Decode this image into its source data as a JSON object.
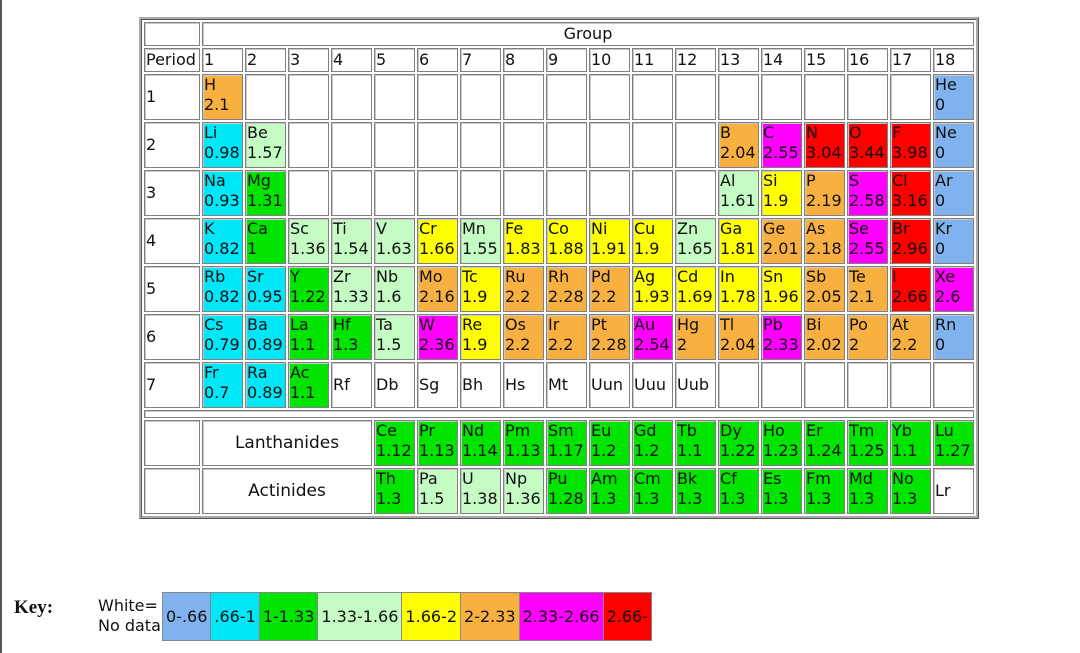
{
  "table": {
    "group_header": "Group",
    "period_header": "Period",
    "group_numbers": [
      "1",
      "2",
      "3",
      "4",
      "5",
      "6",
      "7",
      "8",
      "9",
      "10",
      "11",
      "12",
      "13",
      "14",
      "15",
      "16",
      "17",
      "18"
    ],
    "rows": [
      {
        "period": "1",
        "cells": [
          {
            "sym": "H",
            "en": "2.1",
            "c": "orange"
          },
          {},
          {},
          {},
          {},
          {},
          {},
          {},
          {},
          {},
          {},
          {},
          {},
          {},
          {},
          {},
          {},
          {
            "sym": "He",
            "en": "0",
            "c": "blue"
          }
        ]
      },
      {
        "period": "2",
        "cells": [
          {
            "sym": "Li",
            "en": "0.98",
            "c": "cyan"
          },
          {
            "sym": "Be",
            "en": "1.57",
            "c": "ltgreen"
          },
          {},
          {},
          {},
          {},
          {},
          {},
          {},
          {},
          {},
          {},
          {
            "sym": "B",
            "en": "2.04",
            "c": "orange"
          },
          {
            "sym": "C",
            "en": "2.55",
            "c": "magenta"
          },
          {
            "sym": "N",
            "en": "3.04",
            "c": "red"
          },
          {
            "sym": "O",
            "en": "3.44",
            "c": "red"
          },
          {
            "sym": "F",
            "en": "3.98",
            "c": "red"
          },
          {
            "sym": "Ne",
            "en": "0",
            "c": "blue"
          }
        ]
      },
      {
        "period": "3",
        "cells": [
          {
            "sym": "Na",
            "en": "0.93",
            "c": "cyan"
          },
          {
            "sym": "Mg",
            "en": "1.31",
            "c": "green"
          },
          {},
          {},
          {},
          {},
          {},
          {},
          {},
          {},
          {},
          {},
          {
            "sym": "Al",
            "en": "1.61",
            "c": "ltgreen"
          },
          {
            "sym": "Si",
            "en": "1.9",
            "c": "yellow"
          },
          {
            "sym": "P",
            "en": "2.19",
            "c": "orange"
          },
          {
            "sym": "S",
            "en": "2.58",
            "c": "magenta"
          },
          {
            "sym": "Cl",
            "en": "3.16",
            "c": "red"
          },
          {
            "sym": "Ar",
            "en": "0",
            "c": "blue"
          }
        ]
      },
      {
        "period": "4",
        "cells": [
          {
            "sym": "K",
            "en": "0.82",
            "c": "cyan"
          },
          {
            "sym": "Ca",
            "en": "1",
            "c": "green"
          },
          {
            "sym": "Sc",
            "en": "1.36",
            "c": "ltgreen"
          },
          {
            "sym": "Ti",
            "en": "1.54",
            "c": "ltgreen"
          },
          {
            "sym": "V",
            "en": "1.63",
            "c": "ltgreen"
          },
          {
            "sym": "Cr",
            "en": "1.66",
            "c": "yellow"
          },
          {
            "sym": "Mn",
            "en": "1.55",
            "c": "ltgreen"
          },
          {
            "sym": "Fe",
            "en": "1.83",
            "c": "yellow"
          },
          {
            "sym": "Co",
            "en": "1.88",
            "c": "yellow"
          },
          {
            "sym": "Ni",
            "en": "1.91",
            "c": "yellow"
          },
          {
            "sym": "Cu",
            "en": "1.9",
            "c": "yellow"
          },
          {
            "sym": "Zn",
            "en": "1.65",
            "c": "ltgreen"
          },
          {
            "sym": "Ga",
            "en": "1.81",
            "c": "yellow"
          },
          {
            "sym": "Ge",
            "en": "2.01",
            "c": "orange"
          },
          {
            "sym": "As",
            "en": "2.18",
            "c": "orange"
          },
          {
            "sym": "Se",
            "en": "2.55",
            "c": "magenta"
          },
          {
            "sym": "Br",
            "en": "2.96",
            "c": "red"
          },
          {
            "sym": "Kr",
            "en": "0",
            "c": "blue"
          }
        ]
      },
      {
        "period": "5",
        "cells": [
          {
            "sym": "Rb",
            "en": "0.82",
            "c": "cyan"
          },
          {
            "sym": "Sr",
            "en": "0.95",
            "c": "cyan"
          },
          {
            "sym": "Y",
            "en": "1.22",
            "c": "green"
          },
          {
            "sym": "Zr",
            "en": "1.33",
            "c": "ltgreen"
          },
          {
            "sym": "Nb",
            "en": "1.6",
            "c": "ltgreen"
          },
          {
            "sym": "Mo",
            "en": "2.16",
            "c": "orange"
          },
          {
            "sym": "Tc",
            "en": "1.9",
            "c": "yellow"
          },
          {
            "sym": "Ru",
            "en": "2.2",
            "c": "orange"
          },
          {
            "sym": "Rh",
            "en": "2.28",
            "c": "orange"
          },
          {
            "sym": "Pd",
            "en": "2.2",
            "c": "orange"
          },
          {
            "sym": "Ag",
            "en": "1.93",
            "c": "yellow"
          },
          {
            "sym": "Cd",
            "en": "1.69",
            "c": "yellow"
          },
          {
            "sym": "In",
            "en": "1.78",
            "c": "yellow"
          },
          {
            "sym": "Sn",
            "en": "1.96",
            "c": "yellow"
          },
          {
            "sym": "Sb",
            "en": "2.05",
            "c": "orange"
          },
          {
            "sym": "Te",
            "en": "2.1",
            "c": "orange"
          },
          {
            "sym": "I",
            "en": "2.66",
            "c": "red"
          },
          {
            "sym": "Xe",
            "en": "2.6",
            "c": "magenta"
          }
        ]
      },
      {
        "period": "6",
        "cells": [
          {
            "sym": "Cs",
            "en": "0.79",
            "c": "cyan"
          },
          {
            "sym": "Ba",
            "en": "0.89",
            "c": "cyan"
          },
          {
            "sym": "La",
            "en": "1.1",
            "c": "green"
          },
          {
            "sym": "Hf",
            "en": "1.3",
            "c": "green"
          },
          {
            "sym": "Ta",
            "en": "1.5",
            "c": "ltgreen"
          },
          {
            "sym": "W",
            "en": "2.36",
            "c": "magenta"
          },
          {
            "sym": "Re",
            "en": "1.9",
            "c": "yellow"
          },
          {
            "sym": "Os",
            "en": "2.2",
            "c": "orange"
          },
          {
            "sym": "Ir",
            "en": "2.2",
            "c": "orange"
          },
          {
            "sym": "Pt",
            "en": "2.28",
            "c": "orange"
          },
          {
            "sym": "Au",
            "en": "2.54",
            "c": "magenta"
          },
          {
            "sym": "Hg",
            "en": "2",
            "c": "orange"
          },
          {
            "sym": "Tl",
            "en": "2.04",
            "c": "orange"
          },
          {
            "sym": "Pb",
            "en": "2.33",
            "c": "magenta"
          },
          {
            "sym": "Bi",
            "en": "2.02",
            "c": "orange"
          },
          {
            "sym": "Po",
            "en": "2",
            "c": "orange"
          },
          {
            "sym": "At",
            "en": "2.2",
            "c": "orange"
          },
          {
            "sym": "Rn",
            "en": "0",
            "c": "blue"
          }
        ]
      },
      {
        "period": "7",
        "cells": [
          {
            "sym": "Fr",
            "en": "0.7",
            "c": "cyan"
          },
          {
            "sym": "Ra",
            "en": "0.89",
            "c": "cyan"
          },
          {
            "sym": "Ac",
            "en": "1.1",
            "c": "green"
          },
          {
            "sym": "Rf"
          },
          {
            "sym": "Db"
          },
          {
            "sym": "Sg"
          },
          {
            "sym": "Bh"
          },
          {
            "sym": "Hs"
          },
          {
            "sym": "Mt"
          },
          {
            "sym": "Uun"
          },
          {
            "sym": "Uuu"
          },
          {
            "sym": "Uub"
          },
          {},
          {},
          {},
          {},
          {},
          {}
        ]
      }
    ],
    "series": [
      {
        "label": "Lanthanides",
        "cells": [
          {
            "sym": "Ce",
            "en": "1.12",
            "c": "green"
          },
          {
            "sym": "Pr",
            "en": "1.13",
            "c": "green"
          },
          {
            "sym": "Nd",
            "en": "1.14",
            "c": "green"
          },
          {
            "sym": "Pm",
            "en": "1.13",
            "c": "green"
          },
          {
            "sym": "Sm",
            "en": "1.17",
            "c": "green"
          },
          {
            "sym": "Eu",
            "en": "1.2",
            "c": "green"
          },
          {
            "sym": "Gd",
            "en": "1.2",
            "c": "green"
          },
          {
            "sym": "Tb",
            "en": "1.1",
            "c": "green"
          },
          {
            "sym": "Dy",
            "en": "1.22",
            "c": "green"
          },
          {
            "sym": "Ho",
            "en": "1.23",
            "c": "green"
          },
          {
            "sym": "Er",
            "en": "1.24",
            "c": "green"
          },
          {
            "sym": "Tm",
            "en": "1.25",
            "c": "green"
          },
          {
            "sym": "Yb",
            "en": "1.1",
            "c": "green"
          },
          {
            "sym": "Lu",
            "en": "1.27",
            "c": "green"
          }
        ]
      },
      {
        "label": "Actinides",
        "cells": [
          {
            "sym": "Th",
            "en": "1.3",
            "c": "green"
          },
          {
            "sym": "Pa",
            "en": "1.5",
            "c": "ltgreen"
          },
          {
            "sym": "U",
            "en": "1.38",
            "c": "ltgreen"
          },
          {
            "sym": "Np",
            "en": "1.36",
            "c": "ltgreen"
          },
          {
            "sym": "Pu",
            "en": "1.28",
            "c": "green"
          },
          {
            "sym": "Am",
            "en": "1.3",
            "c": "green"
          },
          {
            "sym": "Cm",
            "en": "1.3",
            "c": "green"
          },
          {
            "sym": "Bk",
            "en": "1.3",
            "c": "green"
          },
          {
            "sym": "Cf",
            "en": "1.3",
            "c": "green"
          },
          {
            "sym": "Es",
            "en": "1.3",
            "c": "green"
          },
          {
            "sym": "Fm",
            "en": "1.3",
            "c": "green"
          },
          {
            "sym": "Md",
            "en": "1.3",
            "c": "green"
          },
          {
            "sym": "No",
            "en": "1.3",
            "c": "green"
          },
          {
            "sym": "Lr"
          }
        ]
      }
    ]
  },
  "colors": {
    "blue": "#7fb2ee",
    "cyan": "#00e8f8",
    "green": "#00e400",
    "ltgreen": "#c4fcc4",
    "yellow": "#ffff00",
    "orange": "#f8b040",
    "magenta": "#ff00ff",
    "red": "#ff0000"
  },
  "key": {
    "title": "Key:",
    "white_line1": "White=",
    "white_line2": "No data",
    "ranges": [
      {
        "label": "0-.66",
        "c": "blue"
      },
      {
        "label": ".66-1",
        "c": "cyan"
      },
      {
        "label": "1-1.33",
        "c": "green"
      },
      {
        "label": "1.33-1.66",
        "c": "ltgreen"
      },
      {
        "label": "1.66-2",
        "c": "yellow"
      },
      {
        "label": "2-2.33",
        "c": "orange"
      },
      {
        "label": "2.33-2.66",
        "c": "magenta"
      },
      {
        "label": "2.66-",
        "c": "red"
      }
    ]
  }
}
